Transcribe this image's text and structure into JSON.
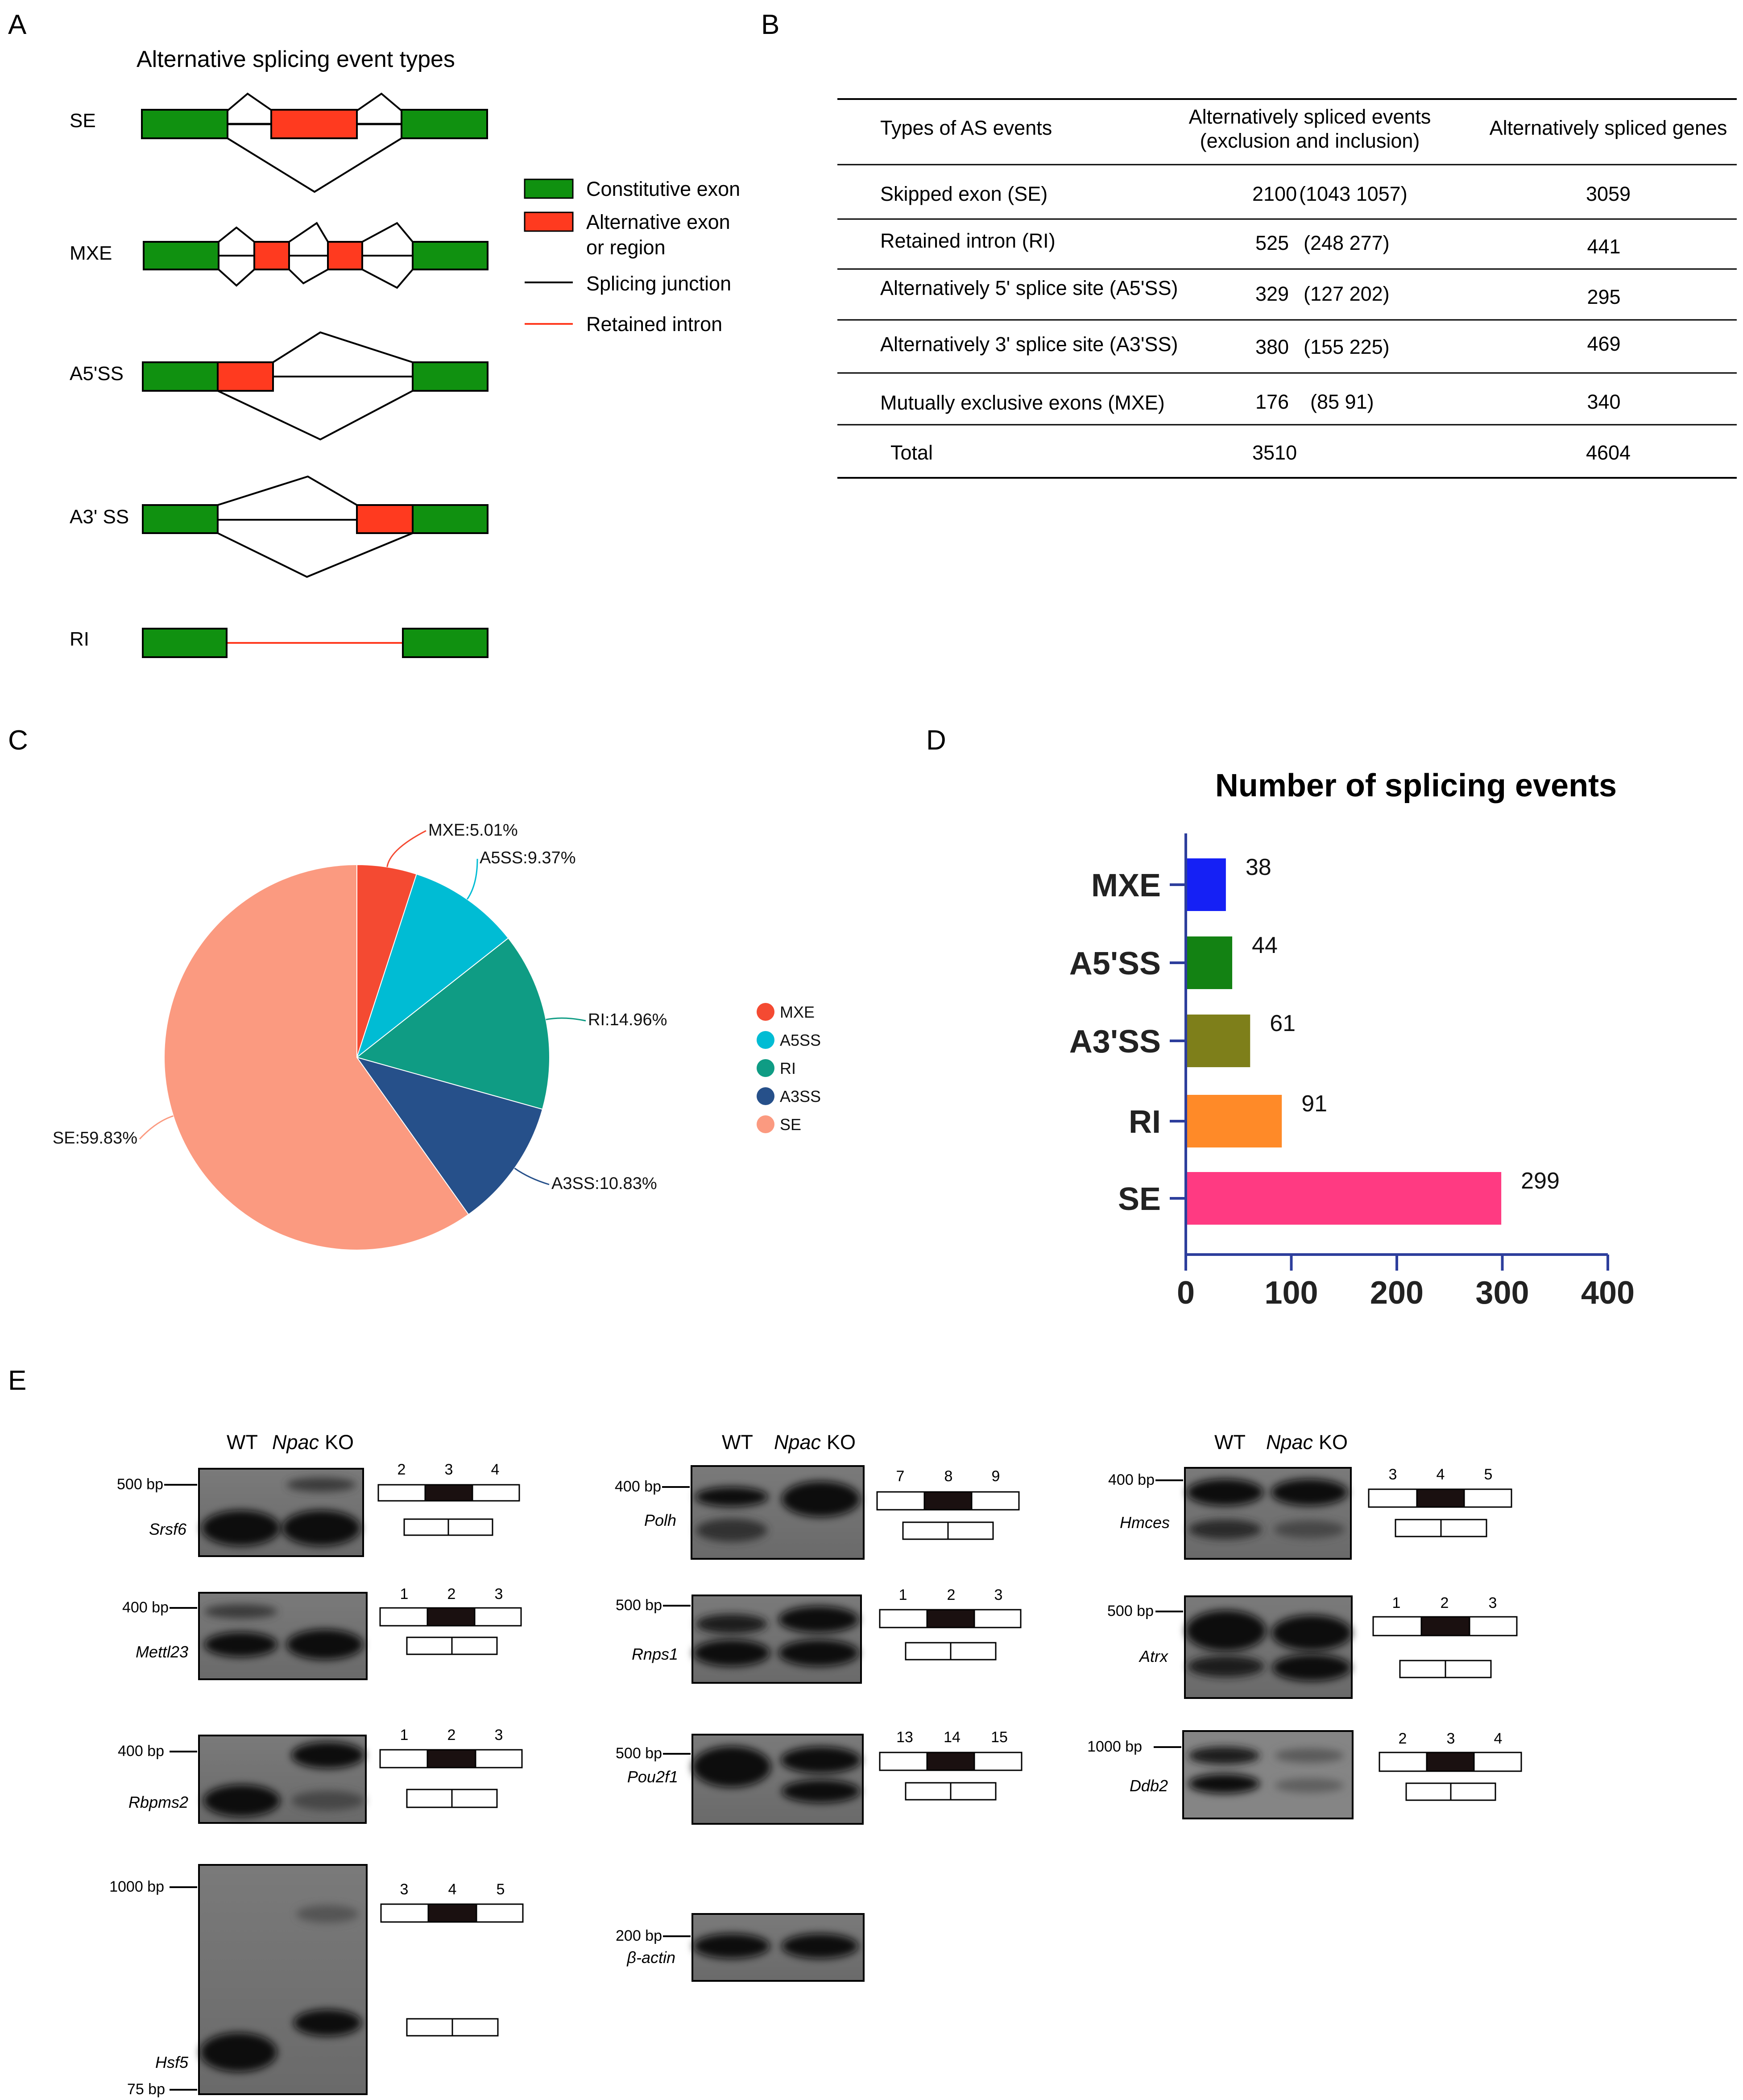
{
  "panel_letters": {
    "a": "A",
    "b": "B",
    "c": "C",
    "d": "D",
    "e": "E"
  },
  "panel_a": {
    "title": "Alternative splicing event types",
    "rows": [
      "SE",
      "MXE",
      "A5'SS",
      "A3' SS",
      "RI"
    ],
    "legend": [
      {
        "line1": "Constitutive exon",
        "line2": ""
      },
      {
        "line1": "Alternative exon",
        "line2": "or region"
      },
      {
        "line1": "Splicing junction",
        "line2": ""
      },
      {
        "line1": "Retained intron",
        "line2": ""
      }
    ],
    "colors": {
      "constitutive": "#109110",
      "alternative": "#ff3a1f",
      "junction": "#000000",
      "retained": "#ff3a1f"
    }
  },
  "panel_b": {
    "headers": [
      "Types of AS events",
      "Alternatively spliced events",
      "(exclusion and inclusion)",
      "Alternatively spliced genes"
    ],
    "rows": [
      {
        "type": "Skipped exon (SE)",
        "events": "2100",
        "split": "(1043 1057)",
        "genes": "3059"
      },
      {
        "type": "Retained intron (RI)",
        "events": "525",
        "split": "(248 277)",
        "genes": "441"
      },
      {
        "type": "Alternatively 5' splice site (A5'SS)",
        "events": "329",
        "split": "(127 202)",
        "genes": "295"
      },
      {
        "type": "Alternatively 3' splice site (A3'SS)",
        "events": "380",
        "split": "(155 225)",
        "genes": "469"
      },
      {
        "type": "Mutually exclusive exons (MXE)",
        "events": "176",
        "split": "(85 91)",
        "genes": "340"
      },
      {
        "type": "Total",
        "events": "3510",
        "split": "",
        "genes": "4604"
      }
    ]
  },
  "chart_data": [
    {
      "type": "pie",
      "slices": [
        {
          "name": "MXE",
          "value": 5.01,
          "label": "MXE:5.01%",
          "color": "#f44a32"
        },
        {
          "name": "A5SS",
          "value": 9.37,
          "label": "A5SS:9.37%",
          "color": "#00bcd4"
        },
        {
          "name": "RI",
          "value": 14.96,
          "label": "RI:14.96%",
          "color": "#0f9c84"
        },
        {
          "name": "A3SS",
          "value": 10.83,
          "label": "A3SS:10.83%",
          "color": "#26508a"
        },
        {
          "name": "SE",
          "value": 59.83,
          "label": "SE:59.83%",
          "color": "#fb9a80"
        }
      ],
      "legend": [
        "MXE",
        "A5SS",
        "RI",
        "A3SS",
        "SE"
      ],
      "legend_placement": "right"
    },
    {
      "type": "bar",
      "orientation": "horizontal",
      "title": "Number of splicing events",
      "categories": [
        "MXE",
        "A5'SS",
        "A3'SS",
        "RI",
        "SE"
      ],
      "values": [
        38,
        44,
        61,
        91,
        299
      ],
      "colors": [
        "#1520f5",
        "#138213",
        "#7e7f1a",
        "#ff8a28",
        "#ff3a82"
      ],
      "xlim": [
        0,
        400
      ],
      "xticks": [
        "0",
        "100",
        "200",
        "300",
        "400"
      ],
      "grid": false
    }
  ],
  "panel_e": {
    "col_header": {
      "wt": "WT",
      "gene": "Npac",
      "ko": "KO"
    },
    "gels": [
      {
        "gene": "Srsf6",
        "marker": "500 bp",
        "exons": [
          "2",
          "3",
          "4"
        ]
      },
      {
        "gene": "Mettl23",
        "marker": "400 bp",
        "exons": [
          "1",
          "2",
          "3"
        ]
      },
      {
        "gene": "Rbpms2",
        "marker": "400 bp",
        "exons": [
          "1",
          "2",
          "3"
        ]
      },
      {
        "gene": "Hsf5",
        "marker": "1000 bp",
        "marker2": "75 bp",
        "exons": [
          "3",
          "4",
          "5"
        ]
      },
      {
        "gene": "Polh",
        "marker": "400 bp",
        "exons": [
          "7",
          "8",
          "9"
        ]
      },
      {
        "gene": "Rnps1",
        "marker": "500 bp",
        "exons": [
          "1",
          "2",
          "3"
        ]
      },
      {
        "gene": "Pou2f1",
        "marker": "500 bp",
        "exons": [
          "13",
          "14",
          "15"
        ]
      },
      {
        "gene": "β-actin",
        "marker": "200 bp",
        "exons": []
      },
      {
        "gene": "Hmces",
        "marker": "400 bp",
        "exons": [
          "3",
          "4",
          "5"
        ]
      },
      {
        "gene": "Atrx",
        "marker": "500 bp",
        "exons": [
          "1",
          "2",
          "3"
        ]
      },
      {
        "gene": "Ddb2",
        "marker": "1000 bp",
        "exons": [
          "2",
          "3",
          "4"
        ]
      }
    ]
  }
}
